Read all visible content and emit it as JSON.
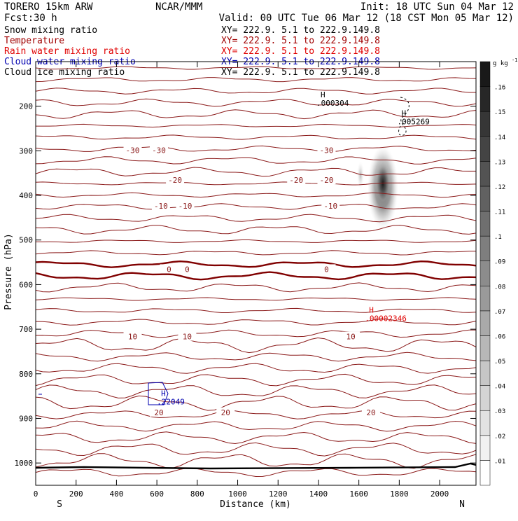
{
  "header": {
    "model": "TORERO  15km ARW",
    "center": "NCAR/MMM",
    "init": "Init: 18 UTC Sun 04 Mar 12",
    "fcst_label": "Fcst:",
    "fcst_value": "30 h",
    "valid": "Valid: 00 UTC Tue 06 Mar 12 (18 CST Mon 05 Mar 12)"
  },
  "fields": [
    {
      "name": "Snow mixing ratio",
      "xy": "XY= 222.9.  5.1 to 222.9.149.8",
      "color": "#000000"
    },
    {
      "name": "Temperature",
      "xy": "XY= 222.9.  5.1 to 222.9.149.8",
      "color": "#a00000"
    },
    {
      "name": "Rain water mixing ratio",
      "xy": "XY= 222.9.  5.1 to 222.9.149.8",
      "color": "#e00000"
    },
    {
      "name": "Cloud water mixing ratio",
      "xy": "XY= 222.9.  5.1 to 222.9.149.8",
      "color": "#0000b0"
    },
    {
      "name": "Cloud ice mixing ratio",
      "xy": "XY= 222.9.  5.1 to 222.9.149.8",
      "color": "#000000"
    }
  ],
  "chart_data": {
    "type": "contour cross-section",
    "xlabel": "Distance (km)",
    "ylabel": "Pressure (hPa)",
    "xlim": [
      0,
      2180
    ],
    "ylim": [
      1050,
      100
    ],
    "x_ticks": [
      0,
      200,
      400,
      600,
      800,
      1000,
      1200,
      1400,
      1600,
      1800,
      2000
    ],
    "y_ticks": [
      200,
      300,
      400,
      500,
      600,
      700,
      800,
      900,
      1000
    ],
    "x_end_labels": {
      "left": "S",
      "right": "N"
    },
    "colorbar": {
      "unit_label": "g kg",
      "unit_exp": "-1",
      "ticks": [
        ".01",
        ".02",
        ".03",
        ".04",
        ".05",
        ".06",
        ".07",
        ".08",
        ".09",
        ".1",
        ".11",
        ".12",
        ".13",
        ".14",
        ".15",
        ".16"
      ]
    },
    "temperature_contours": [
      {
        "label": "-30",
        "x": [
          480,
          610,
          1440
        ],
        "p": 300
      },
      {
        "label": "-20",
        "x": [
          690,
          1290,
          1440
        ],
        "p": 367
      },
      {
        "label": "-10",
        "x": [
          620,
          740,
          1460
        ],
        "p": 425
      },
      {
        "label": "0",
        "x": [
          660,
          750,
          1440
        ],
        "p": 567
      },
      {
        "label": "10",
        "x": [
          480,
          750,
          1560
        ],
        "p": 718
      },
      {
        "label": "20",
        "x": [
          610,
          940,
          1660
        ],
        "p": 888
      }
    ],
    "maxima": [
      {
        "field": "Snow mixing ratio",
        "label": "H",
        "value": ".000304",
        "x": 1390,
        "p": 180
      },
      {
        "field": "Cloud ice mixing ratio",
        "label": "H",
        "value": ".005269",
        "x": 1790,
        "p": 222
      },
      {
        "field": "Rain water mixing ratio",
        "label": "H",
        "value": ".00002346",
        "x": 1630,
        "p": 663
      },
      {
        "field": "Cloud water mixing ratio",
        "label": "H",
        "value": ".22049",
        "x": 600,
        "p": 850
      }
    ],
    "shaded_max": {
      "field": "Cloud ice mixing ratio",
      "x": 1710,
      "p_range": [
        280,
        470
      ]
    }
  }
}
